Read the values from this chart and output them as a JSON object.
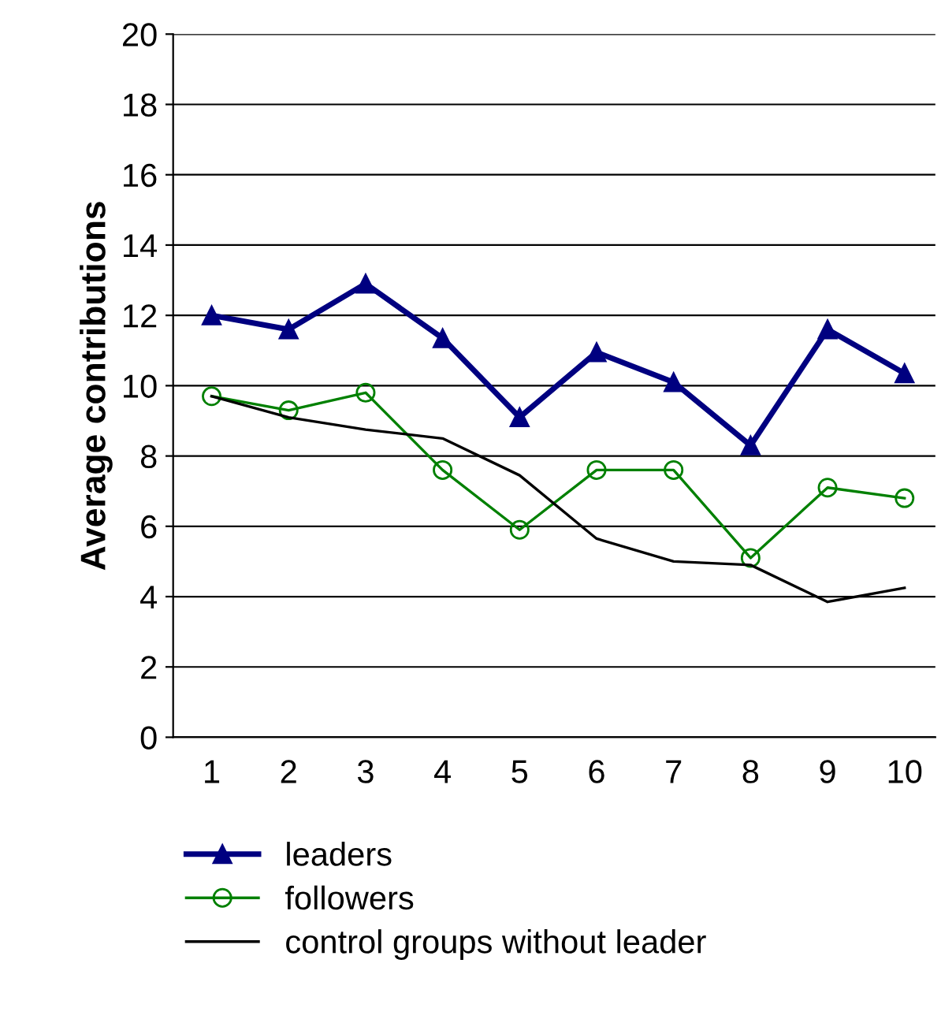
{
  "chart_data": {
    "type": "line",
    "ylabel": "Average contributions",
    "categories": [
      "1",
      "2",
      "3",
      "4",
      "5",
      "6",
      "7",
      "8",
      "9",
      "10"
    ],
    "series": [
      {
        "name": "leaders",
        "color": "#000080",
        "marker": "triangle",
        "values": [
          12.0,
          11.6,
          12.9,
          11.35,
          9.1,
          10.95,
          10.1,
          8.3,
          11.6,
          10.35
        ]
      },
      {
        "name": "followers",
        "color": "#008000",
        "marker": "circle",
        "values": [
          9.7,
          9.3,
          9.8,
          7.6,
          5.9,
          7.6,
          7.6,
          5.1,
          7.1,
          6.8
        ]
      },
      {
        "name": "control groups without leader",
        "color": "#000000",
        "marker": "none",
        "values": [
          9.7,
          9.1,
          8.75,
          8.5,
          7.45,
          5.65,
          5.0,
          4.9,
          3.85,
          4.25
        ]
      }
    ],
    "ylim": [
      0,
      20
    ],
    "yticks": [
      0,
      2,
      4,
      6,
      8,
      10,
      12,
      14,
      16,
      18,
      20
    ],
    "grid": "y",
    "legend": "bottom"
  }
}
